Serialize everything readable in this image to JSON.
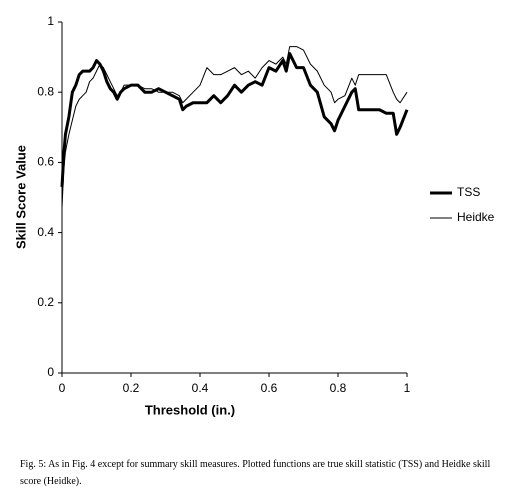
{
  "chart_data": {
    "type": "line",
    "xlabel": "Threshold (in.)",
    "ylabel": "Skill Score Value",
    "caption": "Fig. 5:  As in Fig. 4 except for summary skill measures.  Plotted functions are true skill statistic (TSS) and Heidke skill score (Heidke).",
    "x": [
      0,
      0.005,
      0.01,
      0.02,
      0.03,
      0.04,
      0.05,
      0.06,
      0.07,
      0.08,
      0.09,
      0.1,
      0.11,
      0.12,
      0.13,
      0.14,
      0.15,
      0.16,
      0.17,
      0.18,
      0.2,
      0.22,
      0.24,
      0.26,
      0.28,
      0.3,
      0.32,
      0.34,
      0.35,
      0.36,
      0.38,
      0.4,
      0.42,
      0.44,
      0.46,
      0.48,
      0.5,
      0.52,
      0.54,
      0.56,
      0.58,
      0.6,
      0.62,
      0.64,
      0.65,
      0.66,
      0.68,
      0.7,
      0.72,
      0.74,
      0.76,
      0.78,
      0.79,
      0.8,
      0.82,
      0.84,
      0.85,
      0.86,
      0.88,
      0.9,
      0.92,
      0.94,
      0.96,
      0.97,
      0.98,
      1.0
    ],
    "series": [
      {
        "name": "TSS",
        "color": "#000000",
        "width": 3,
        "values": [
          0.53,
          0.62,
          0.68,
          0.73,
          0.8,
          0.82,
          0.85,
          0.86,
          0.86,
          0.86,
          0.87,
          0.89,
          0.88,
          0.86,
          0.83,
          0.81,
          0.8,
          0.78,
          0.8,
          0.81,
          0.82,
          0.82,
          0.8,
          0.8,
          0.81,
          0.8,
          0.79,
          0.78,
          0.75,
          0.76,
          0.77,
          0.77,
          0.77,
          0.79,
          0.77,
          0.79,
          0.82,
          0.8,
          0.82,
          0.83,
          0.82,
          0.87,
          0.86,
          0.89,
          0.86,
          0.91,
          0.87,
          0.87,
          0.82,
          0.8,
          0.73,
          0.71,
          0.69,
          0.72,
          0.76,
          0.8,
          0.81,
          0.75,
          0.75,
          0.75,
          0.75,
          0.74,
          0.74,
          0.68,
          0.7,
          0.75
        ]
      },
      {
        "name": "Heidke",
        "color": "#000000",
        "width": 1,
        "values": [
          0.47,
          0.58,
          0.63,
          0.68,
          0.72,
          0.76,
          0.78,
          0.79,
          0.8,
          0.83,
          0.84,
          0.86,
          0.88,
          0.87,
          0.85,
          0.83,
          0.81,
          0.79,
          0.8,
          0.82,
          0.82,
          0.82,
          0.81,
          0.81,
          0.8,
          0.8,
          0.8,
          0.79,
          0.77,
          0.78,
          0.8,
          0.82,
          0.87,
          0.85,
          0.85,
          0.86,
          0.87,
          0.85,
          0.86,
          0.84,
          0.87,
          0.89,
          0.88,
          0.9,
          0.88,
          0.93,
          0.93,
          0.92,
          0.88,
          0.86,
          0.82,
          0.8,
          0.77,
          0.78,
          0.79,
          0.84,
          0.82,
          0.85,
          0.85,
          0.85,
          0.85,
          0.85,
          0.8,
          0.78,
          0.77,
          0.8
        ]
      }
    ],
    "xlim": [
      0,
      1
    ],
    "xticks": [
      0,
      0.2,
      0.4,
      0.6,
      0.8,
      1
    ],
    "ylim": [
      0,
      1
    ],
    "yticks": [
      0,
      0.2,
      0.4,
      0.6,
      0.8,
      1
    ],
    "grid": false,
    "legend": "right"
  }
}
